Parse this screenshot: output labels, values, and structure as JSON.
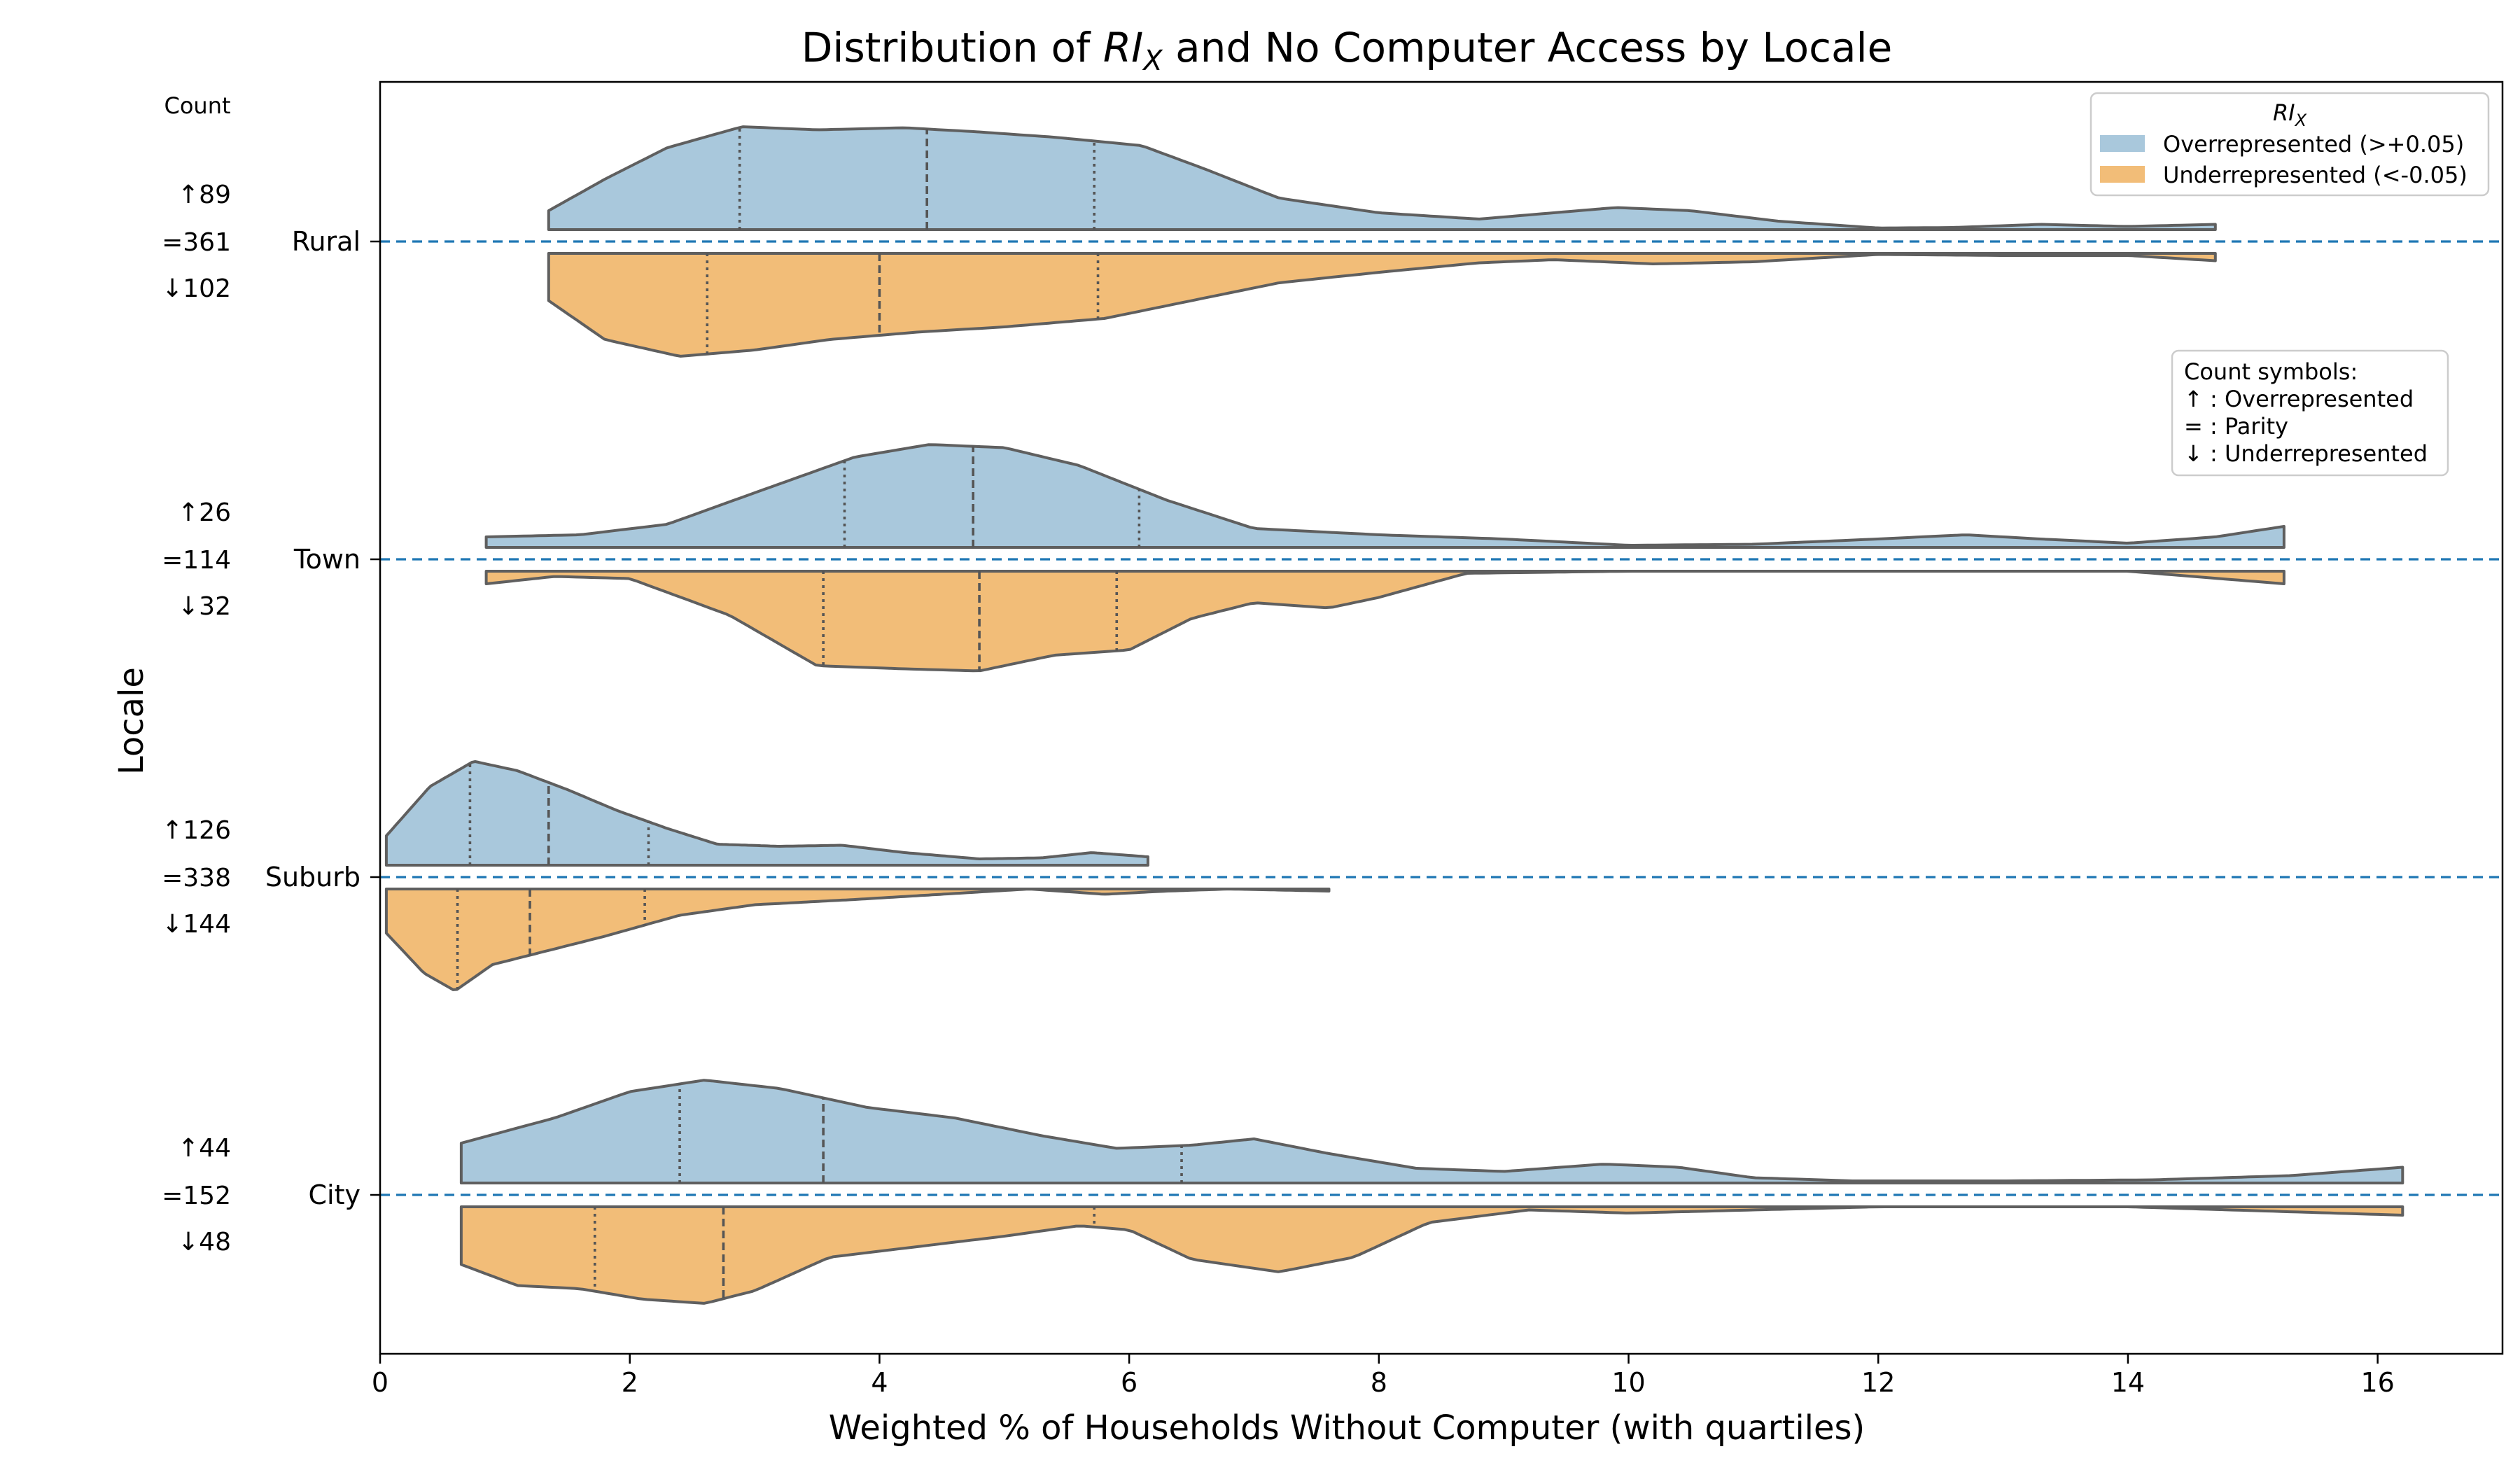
{
  "chart_data": {
    "type": "violin",
    "title_prefix": "Distribution of ",
    "title_var": "RI",
    "title_sub": "X",
    "title_suffix": " and No Computer Access by Locale",
    "xlabel": "Weighted % of Households Without Computer (with quartiles)",
    "ylabel": "Locale",
    "xlim": [
      0,
      17
    ],
    "xticks": [
      0,
      2,
      4,
      6,
      8,
      10,
      12,
      14,
      16
    ],
    "grid": false,
    "split": true,
    "count_header": "Count",
    "legend": {
      "placement": "upper-right",
      "title_var": "RI",
      "title_sub": "X",
      "entries": [
        {
          "key": "over",
          "label": "Overrepresented (>+0.05)",
          "color": "#a9c8dc"
        },
        {
          "key": "under",
          "label": "Underrepresented (<-0.05)",
          "color": "#f2bd78"
        }
      ]
    },
    "count_symbols": {
      "title": "Count symbols:",
      "lines": [
        "↑ : Overrepresented",
        "= : Parity",
        "↓ : Underrepresented"
      ]
    },
    "categories": [
      {
        "name": "Rural",
        "counts": {
          "over": "↑89",
          "parity": "=361",
          "under": "↓102"
        },
        "over": {
          "range": [
            1.35,
            14.7
          ],
          "quartiles": [
            2.88,
            4.38,
            5.72
          ],
          "density": [
            [
              1.35,
              0.18
            ],
            [
              1.8,
              0.48
            ],
            [
              2.3,
              0.78
            ],
            [
              2.9,
              0.98
            ],
            [
              3.5,
              0.95
            ],
            [
              4.2,
              0.97
            ],
            [
              4.8,
              0.93
            ],
            [
              5.4,
              0.88
            ],
            [
              6.1,
              0.8
            ],
            [
              6.6,
              0.58
            ],
            [
              7.2,
              0.3
            ],
            [
              8.0,
              0.16
            ],
            [
              8.8,
              0.1
            ],
            [
              9.4,
              0.16
            ],
            [
              9.9,
              0.21
            ],
            [
              10.5,
              0.18
            ],
            [
              11.2,
              0.08
            ],
            [
              12.0,
              0.015
            ],
            [
              12.6,
              0.02
            ],
            [
              13.3,
              0.05
            ],
            [
              14.0,
              0.03
            ],
            [
              14.7,
              0.05
            ]
          ]
        },
        "under": {
          "range": [
            1.35,
            14.7
          ],
          "quartiles": [
            2.62,
            4.0,
            5.75
          ],
          "density": [
            [
              1.35,
              0.45
            ],
            [
              1.8,
              0.82
            ],
            [
              2.4,
              0.98
            ],
            [
              3.0,
              0.92
            ],
            [
              3.6,
              0.82
            ],
            [
              4.3,
              0.75
            ],
            [
              5.0,
              0.7
            ],
            [
              5.8,
              0.62
            ],
            [
              6.5,
              0.45
            ],
            [
              7.2,
              0.28
            ],
            [
              8.0,
              0.18
            ],
            [
              8.8,
              0.09
            ],
            [
              9.4,
              0.06
            ],
            [
              10.2,
              0.1
            ],
            [
              11.0,
              0.08
            ],
            [
              12.0,
              0.01
            ],
            [
              13.0,
              0.02
            ],
            [
              14.0,
              0.02
            ],
            [
              14.7,
              0.07
            ]
          ]
        }
      },
      {
        "name": "Town",
        "counts": {
          "over": "↑26",
          "parity": "=114",
          "under": "↓32"
        },
        "over": {
          "range": [
            0.85,
            15.25
          ],
          "quartiles": [
            3.72,
            4.75,
            6.08
          ],
          "density": [
            [
              0.85,
              0.1
            ],
            [
              1.6,
              0.12
            ],
            [
              2.3,
              0.22
            ],
            [
              3.0,
              0.52
            ],
            [
              3.8,
              0.86
            ],
            [
              4.4,
              0.98
            ],
            [
              5.0,
              0.95
            ],
            [
              5.6,
              0.78
            ],
            [
              6.3,
              0.45
            ],
            [
              7.0,
              0.18
            ],
            [
              8.0,
              0.12
            ],
            [
              9.0,
              0.08
            ],
            [
              10.0,
              0.02
            ],
            [
              11.0,
              0.03
            ],
            [
              12.0,
              0.08
            ],
            [
              12.7,
              0.12
            ],
            [
              13.3,
              0.08
            ],
            [
              14.0,
              0.04
            ],
            [
              14.7,
              0.1
            ],
            [
              15.25,
              0.2
            ]
          ]
        },
        "under": {
          "range": [
            0.85,
            15.25
          ],
          "quartiles": [
            3.55,
            4.8,
            5.9
          ],
          "density": [
            [
              0.85,
              0.12
            ],
            [
              1.4,
              0.05
            ],
            [
              2.0,
              0.07
            ],
            [
              2.8,
              0.42
            ],
            [
              3.5,
              0.9
            ],
            [
              4.2,
              0.93
            ],
            [
              4.8,
              0.95
            ],
            [
              5.4,
              0.8
            ],
            [
              6.0,
              0.75
            ],
            [
              6.5,
              0.45
            ],
            [
              7.0,
              0.3
            ],
            [
              7.6,
              0.35
            ],
            [
              8.0,
              0.25
            ],
            [
              8.7,
              0.02
            ],
            [
              10.0,
              0.0
            ],
            [
              12.0,
              0.0
            ],
            [
              14.0,
              0.0
            ],
            [
              15.25,
              0.12
            ]
          ]
        }
      },
      {
        "name": "Suburb",
        "counts": {
          "over": "↑126",
          "parity": "=338",
          "under": "↓144"
        },
        "over": {
          "range": [
            0.05,
            6.15
          ],
          "quartiles": [
            0.72,
            1.35,
            2.15
          ],
          "density": [
            [
              0.05,
              0.28
            ],
            [
              0.4,
              0.75
            ],
            [
              0.75,
              0.99
            ],
            [
              1.1,
              0.9
            ],
            [
              1.5,
              0.72
            ],
            [
              1.9,
              0.52
            ],
            [
              2.3,
              0.35
            ],
            [
              2.7,
              0.2
            ],
            [
              3.2,
              0.18
            ],
            [
              3.7,
              0.19
            ],
            [
              4.2,
              0.12
            ],
            [
              4.8,
              0.06
            ],
            [
              5.3,
              0.07
            ],
            [
              5.7,
              0.12
            ],
            [
              6.15,
              0.08
            ]
          ]
        },
        "under": {
          "range": [
            0.05,
            7.6
          ],
          "quartiles": [
            0.62,
            1.2,
            2.12
          ],
          "density": [
            [
              0.05,
              0.42
            ],
            [
              0.35,
              0.8
            ],
            [
              0.6,
              0.97
            ],
            [
              0.9,
              0.72
            ],
            [
              1.3,
              0.6
            ],
            [
              1.8,
              0.45
            ],
            [
              2.4,
              0.25
            ],
            [
              3.0,
              0.15
            ],
            [
              3.8,
              0.1
            ],
            [
              4.5,
              0.05
            ],
            [
              5.2,
              0.0
            ],
            [
              5.8,
              0.05
            ],
            [
              6.3,
              0.02
            ],
            [
              6.8,
              0.0
            ],
            [
              7.6,
              0.02
            ]
          ]
        }
      },
      {
        "name": "City",
        "counts": {
          "over": "↑44",
          "parity": "=152",
          "under": "↓48"
        },
        "over": {
          "range": [
            0.65,
            16.2
          ],
          "quartiles": [
            2.4,
            3.55,
            6.42
          ],
          "density": [
            [
              0.65,
              0.38
            ],
            [
              1.4,
              0.62
            ],
            [
              2.0,
              0.87
            ],
            [
              2.6,
              0.98
            ],
            [
              3.2,
              0.9
            ],
            [
              3.9,
              0.72
            ],
            [
              4.6,
              0.62
            ],
            [
              5.3,
              0.45
            ],
            [
              5.9,
              0.33
            ],
            [
              6.5,
              0.36
            ],
            [
              7.0,
              0.42
            ],
            [
              7.6,
              0.28
            ],
            [
              8.3,
              0.14
            ],
            [
              9.0,
              0.11
            ],
            [
              9.8,
              0.18
            ],
            [
              10.4,
              0.15
            ],
            [
              11.0,
              0.05
            ],
            [
              11.8,
              0.02
            ],
            [
              13.0,
              0.02
            ],
            [
              14.2,
              0.03
            ],
            [
              15.3,
              0.07
            ],
            [
              16.2,
              0.15
            ]
          ]
        },
        "under": {
          "range": [
            0.65,
            16.2
          ],
          "quartiles": [
            1.72,
            2.75,
            5.72
          ],
          "density": [
            [
              0.65,
              0.55
            ],
            [
              1.1,
              0.75
            ],
            [
              1.6,
              0.78
            ],
            [
              2.1,
              0.88
            ],
            [
              2.6,
              0.92
            ],
            [
              3.0,
              0.8
            ],
            [
              3.6,
              0.48
            ],
            [
              4.3,
              0.38
            ],
            [
              5.0,
              0.28
            ],
            [
              5.6,
              0.18
            ],
            [
              6.0,
              0.22
            ],
            [
              6.5,
              0.5
            ],
            [
              7.2,
              0.62
            ],
            [
              7.8,
              0.48
            ],
            [
              8.4,
              0.15
            ],
            [
              9.2,
              0.03
            ],
            [
              10.0,
              0.06
            ],
            [
              11.0,
              0.03
            ],
            [
              12.0,
              0.0
            ],
            [
              14.0,
              0.0
            ],
            [
              16.2,
              0.08
            ]
          ]
        }
      }
    ]
  }
}
